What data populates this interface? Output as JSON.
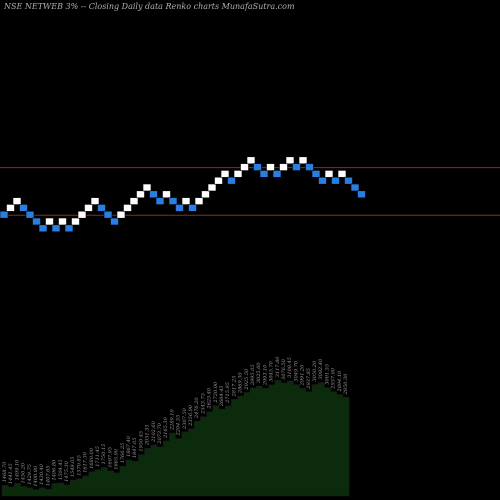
{
  "header": {
    "text": "NSE NETWEB 3% --  Closing Daily data  Renko  charts MunafaSutra.com"
  },
  "colors": {
    "background": "#000000",
    "brick_up": "#ffffff",
    "brick_down": "#2a7de1",
    "reference_line": "#8b2e14",
    "area_fill": "#0c2a0c",
    "area_edge": "#1a1a1a"
  },
  "chart_data": {
    "type": "renko",
    "bricks": [
      {
        "dir": "down",
        "level": 1
      },
      {
        "dir": "up",
        "level": 2
      },
      {
        "dir": "up",
        "level": 3
      },
      {
        "dir": "down",
        "level": 2
      },
      {
        "dir": "down",
        "level": 1
      },
      {
        "dir": "down",
        "level": 0
      },
      {
        "dir": "down",
        "level": -1
      },
      {
        "dir": "up",
        "level": 0
      },
      {
        "dir": "down",
        "level": -1
      },
      {
        "dir": "up",
        "level": 0
      },
      {
        "dir": "down",
        "level": -1
      },
      {
        "dir": "up",
        "level": 0
      },
      {
        "dir": "up",
        "level": 1
      },
      {
        "dir": "up",
        "level": 2
      },
      {
        "dir": "up",
        "level": 3
      },
      {
        "dir": "down",
        "level": 2
      },
      {
        "dir": "down",
        "level": 1
      },
      {
        "dir": "down",
        "level": 0
      },
      {
        "dir": "up",
        "level": 1
      },
      {
        "dir": "up",
        "level": 2
      },
      {
        "dir": "up",
        "level": 3
      },
      {
        "dir": "up",
        "level": 4
      },
      {
        "dir": "up",
        "level": 5
      },
      {
        "dir": "down",
        "level": 4
      },
      {
        "dir": "down",
        "level": 3
      },
      {
        "dir": "up",
        "level": 4
      },
      {
        "dir": "down",
        "level": 3
      },
      {
        "dir": "down",
        "level": 2
      },
      {
        "dir": "up",
        "level": 3
      },
      {
        "dir": "down",
        "level": 2
      },
      {
        "dir": "up",
        "level": 3
      },
      {
        "dir": "up",
        "level": 4
      },
      {
        "dir": "up",
        "level": 5
      },
      {
        "dir": "up",
        "level": 6
      },
      {
        "dir": "up",
        "level": 7
      },
      {
        "dir": "down",
        "level": 6
      },
      {
        "dir": "up",
        "level": 7
      },
      {
        "dir": "up",
        "level": 8
      },
      {
        "dir": "up",
        "level": 9
      },
      {
        "dir": "down",
        "level": 8
      },
      {
        "dir": "down",
        "level": 7
      },
      {
        "dir": "up",
        "level": 8
      },
      {
        "dir": "down",
        "level": 7
      },
      {
        "dir": "up",
        "level": 8
      },
      {
        "dir": "up",
        "level": 9
      },
      {
        "dir": "down",
        "level": 8
      },
      {
        "dir": "up",
        "level": 9
      },
      {
        "dir": "down",
        "level": 8
      },
      {
        "dir": "down",
        "level": 7
      },
      {
        "dir": "down",
        "level": 6
      },
      {
        "dir": "up",
        "level": 7
      },
      {
        "dir": "down",
        "level": 6
      },
      {
        "dir": "up",
        "level": 7
      },
      {
        "dir": "down",
        "level": 6
      },
      {
        "dir": "down",
        "level": 5
      },
      {
        "dir": "down",
        "level": 4
      }
    ],
    "reference_levels": [
      8,
      1
    ],
    "price_labels": [
      "1468.70",
      "1441.45",
      "1499.10",
      "1450.20",
      "1429.75",
      "1400.80",
      "1430.40",
      "1407.65",
      "1496.80",
      "1504.45",
      "1475.30",
      "1549.05",
      "1570.85",
      "1617.30",
      "1680.00",
      "1711.45",
      "1750.15",
      "1697.95",
      "1665.90",
      "1766.25",
      "1867.40",
      "1847.05",
      "1950.45",
      "2051.35",
      "2102.60",
      "2073.70",
      "2165.30",
      "2289.10",
      "2204.55",
      "2307.50",
      "2356.90",
      "2476.20",
      "2543.75",
      "2625.40",
      "2720.00",
      "2664.45",
      "2715.95",
      "2817.25",
      "2869.30",
      "2925.50",
      "2995.05",
      "3025.60",
      "2993.10",
      "3045.70",
      "3117.80",
      "3076.50",
      "3108.45",
      "3049.70",
      "2991.20",
      "2937.85",
      "3050.20",
      "3082.40",
      "3001.55",
      "2937.90",
      "2894.10",
      "2850.30"
    ],
    "area_values": [
      1468.7,
      1441.45,
      1499.1,
      1450.2,
      1429.75,
      1400.8,
      1430.4,
      1407.65,
      1496.8,
      1504.45,
      1475.3,
      1549.05,
      1570.85,
      1617.3,
      1680.0,
      1711.45,
      1750.15,
      1697.95,
      1665.9,
      1766.25,
      1867.4,
      1847.05,
      1950.45,
      2051.35,
      2102.6,
      2073.7,
      2165.3,
      2289.1,
      2204.55,
      2307.5,
      2356.9,
      2476.2,
      2543.75,
      2625.4,
      2720.0,
      2664.45,
      2715.95,
      2817.25,
      2869.3,
      2925.5,
      2995.05,
      3025.6,
      2993.1,
      3045.7,
      3117.8,
      3076.5,
      3108.45,
      3049.7,
      2991.2,
      2937.85,
      3050.2,
      3082.4,
      3001.55,
      2937.9,
      2894.1,
      2850.3
    ]
  }
}
